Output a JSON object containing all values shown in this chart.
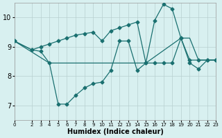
{
  "xlabel": "Humidex (Indice chaleur)",
  "bg_color": "#d8f0f0",
  "line_color": "#1a7070",
  "grid_color": "#b8d0d0",
  "xlim": [
    0,
    23
  ],
  "ylim": [
    6.5,
    10.5
  ],
  "yticks": [
    7,
    8,
    9,
    10
  ],
  "xticks": [
    0,
    2,
    3,
    4,
    5,
    6,
    7,
    8,
    9,
    10,
    11,
    12,
    13,
    14,
    15,
    16,
    17,
    18,
    19,
    20,
    21,
    22,
    23
  ],
  "line1_x": [
    0,
    2,
    3,
    4,
    5,
    6,
    7,
    8,
    9,
    10,
    11,
    12,
    13,
    14,
    15,
    16,
    17,
    18,
    19,
    20,
    21,
    22,
    23
  ],
  "line1_y": [
    9.2,
    8.9,
    8.85,
    8.45,
    7.05,
    7.05,
    7.35,
    7.6,
    7.75,
    7.8,
    8.2,
    9.2,
    9.2,
    8.2,
    8.45,
    9.9,
    10.45,
    10.3,
    9.3,
    8.45,
    8.25,
    8.55,
    8.55
  ],
  "line2_x": [
    0,
    2,
    3,
    4,
    5,
    6,
    7,
    8,
    9,
    10,
    11,
    12,
    13,
    14,
    15,
    16,
    17,
    18,
    19,
    20,
    21,
    22,
    23
  ],
  "line2_y": [
    9.2,
    8.9,
    9.0,
    9.1,
    9.2,
    9.3,
    9.4,
    9.45,
    9.5,
    9.2,
    9.55,
    9.65,
    9.75,
    9.85,
    8.45,
    8.45,
    8.45,
    8.45,
    9.3,
    8.55,
    8.55,
    8.55,
    8.55
  ],
  "line3_x": [
    0,
    4,
    5,
    14,
    15,
    19,
    20,
    21,
    22,
    23
  ],
  "line3_y": [
    9.2,
    8.45,
    8.45,
    8.45,
    8.45,
    9.3,
    9.3,
    8.55,
    8.55,
    8.55
  ],
  "marker_size": 2.5,
  "linewidth": 0.9
}
